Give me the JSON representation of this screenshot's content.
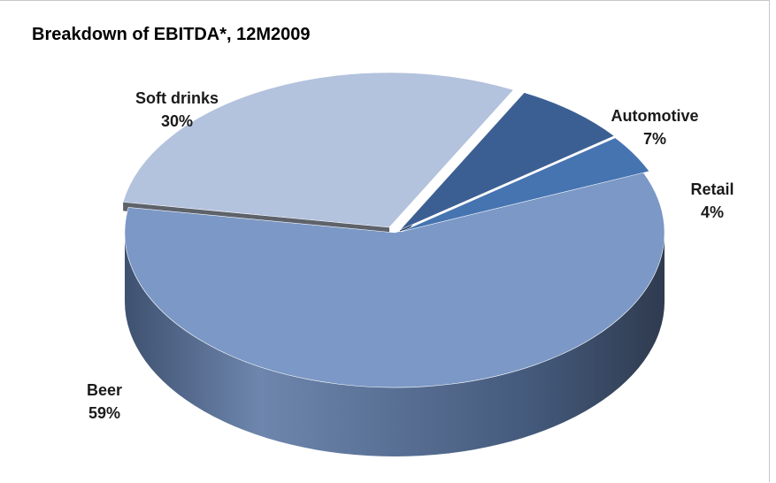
{
  "chart_data": {
    "type": "pie",
    "title": "Breakdown of EBITDA*, 12M2009",
    "style": "3d-exploded",
    "slices": [
      {
        "name": "Beer",
        "value": 59,
        "label": "59%",
        "color": "#7b98c6",
        "side_color": "#4b5f80"
      },
      {
        "name": "Soft drinks",
        "value": 30,
        "label": "30%",
        "color": "#b3c2dd",
        "side_color": "#5d626b"
      },
      {
        "name": "Automotive",
        "value": 7,
        "label": "7%",
        "color": "#3c5f93",
        "side_color": "#263b5c"
      },
      {
        "name": "Retail",
        "value": 4,
        "label": "4%",
        "color": "#4674b1",
        "side_color": "#26406a"
      }
    ]
  }
}
